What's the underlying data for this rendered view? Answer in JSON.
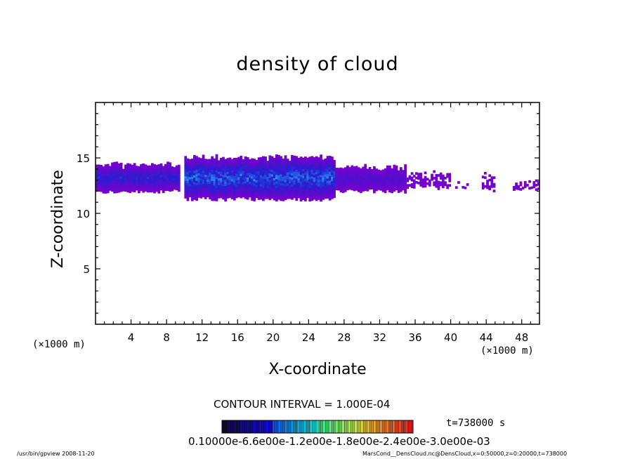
{
  "chart_data": {
    "type": "heatmap",
    "title": "density of cloud",
    "xlabel": "X-coordinate",
    "ylabel": "Z-coordinate",
    "x_unit_label": "(×1000 m)",
    "x_unit_label_right": "(×1000 m)",
    "xlim": [
      0,
      50
    ],
    "ylim": [
      0,
      20
    ],
    "x_ticks": [
      "4",
      "8",
      "12",
      "16",
      "20",
      "24",
      "28",
      "32",
      "36",
      "40",
      "44",
      "48"
    ],
    "y_ticks": [
      "5",
      "10",
      "15"
    ],
    "contour_interval": "CONTOUR INTERVAL = 1.000E-04",
    "colorbar_labels_text": "0.10000e-6.6e00e-1.2e00e-1.8e00e-2.4e00e-3.0e00e-03",
    "colorbar_range": [
      0.0001,
      0.003
    ],
    "cloud_band": {
      "z_base_km": 11.5,
      "z_top_km": 15.2,
      "core_x_km": [
        15,
        22
      ],
      "core_z_km": 14.2,
      "segments": [
        {
          "x0": 0,
          "x1": 9.5,
          "z_lo": 12.0,
          "z_hi": 14.5,
          "intensity": 0.45
        },
        {
          "x0": 10,
          "x1": 27,
          "z_lo": 11.3,
          "z_hi": 15.2,
          "intensity": 0.75
        },
        {
          "x0": 27,
          "x1": 35,
          "z_lo": 12.0,
          "z_hi": 14.3,
          "intensity": 0.25
        },
        {
          "x0": 35,
          "x1": 40,
          "z_lo": 12.3,
          "z_hi": 13.9,
          "intensity": 0.05
        },
        {
          "x0": 40.5,
          "x1": 42,
          "z_lo": 12.2,
          "z_hi": 12.8,
          "intensity": 0.05
        },
        {
          "x0": 43.5,
          "x1": 45,
          "z_lo": 12.1,
          "z_hi": 13.6,
          "intensity": 0.05
        },
        {
          "x0": 47,
          "x1": 50,
          "z_lo": 12.2,
          "z_hi": 12.9,
          "intensity": 0.05
        }
      ]
    }
  },
  "time_label": "t=738000 s",
  "footer_left": "/usr/bin/gpview  2008-11-20",
  "footer_right": "MarsCond__DensCloud.nc@DensCloud,x=0:50000,z=0:20000,t=738000",
  "colors": {
    "low": "#7a00cc",
    "mid": "#2020d0",
    "high": "#2a8cf0",
    "frame": "#000000"
  }
}
